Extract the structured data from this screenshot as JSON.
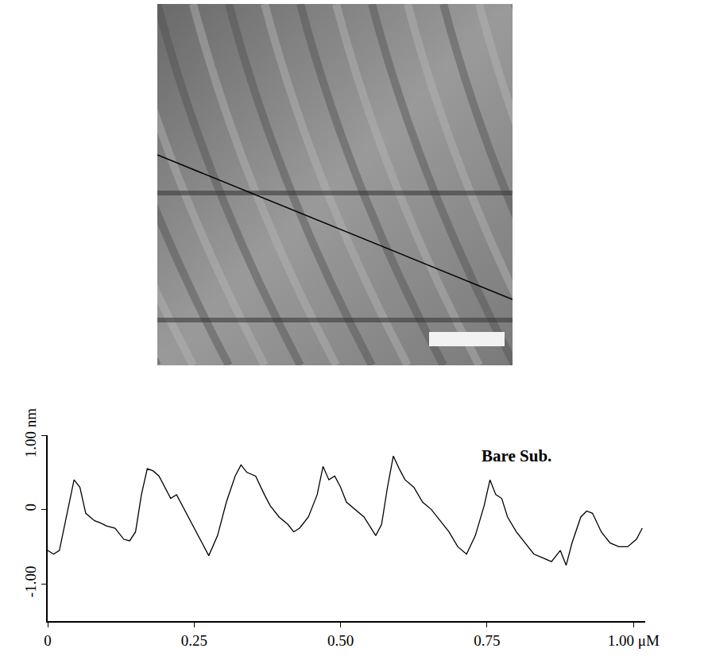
{
  "chart_data": {
    "type": "line",
    "color": "#000000",
    "grid": false,
    "annotations": [
      {
        "text": "Bare Sub.",
        "x": 0.8,
        "y": 0.72
      }
    ],
    "xlim": [
      0,
      1.02
    ],
    "ylim": [
      -1.5,
      1.0
    ],
    "xticks": [
      0,
      {
        "value": 0.25,
        "label": "0.25"
      },
      {
        "value": 0.5,
        "label": "0.50"
      },
      {
        "value": 0.75,
        "label": "0.75"
      },
      {
        "value": 1.0,
        "label": "1.00 μM"
      }
    ],
    "yticks": [
      {
        "value": -1,
        "label": "-1.00"
      },
      0,
      {
        "value": 1,
        "label": "1.00 nm"
      }
    ],
    "x": [
      0.0,
      0.01,
      0.02,
      0.035,
      0.045,
      0.055,
      0.065,
      0.08,
      0.09,
      0.1,
      0.115,
      0.13,
      0.14,
      0.15,
      0.16,
      0.17,
      0.18,
      0.19,
      0.2,
      0.21,
      0.22,
      0.23,
      0.24,
      0.25,
      0.26,
      0.275,
      0.29,
      0.305,
      0.32,
      0.33,
      0.34,
      0.355,
      0.37,
      0.38,
      0.395,
      0.41,
      0.42,
      0.43,
      0.445,
      0.46,
      0.47,
      0.48,
      0.49,
      0.5,
      0.51,
      0.525,
      0.54,
      0.56,
      0.57,
      0.58,
      0.59,
      0.6,
      0.61,
      0.625,
      0.64,
      0.655,
      0.67,
      0.685,
      0.7,
      0.715,
      0.73,
      0.745,
      0.755,
      0.765,
      0.775,
      0.785,
      0.8,
      0.815,
      0.83,
      0.845,
      0.86,
      0.875,
      0.885,
      0.895,
      0.91,
      0.92,
      0.93,
      0.945,
      0.96,
      0.975,
      0.99,
      1.005,
      1.015
    ],
    "values": [
      -0.55,
      -0.6,
      -0.55,
      0.0,
      0.4,
      0.3,
      -0.05,
      -0.15,
      -0.18,
      -0.22,
      -0.25,
      -0.4,
      -0.42,
      -0.3,
      0.2,
      0.55,
      0.52,
      0.45,
      0.3,
      0.15,
      0.2,
      0.05,
      -0.1,
      -0.25,
      -0.4,
      -0.62,
      -0.35,
      0.1,
      0.45,
      0.6,
      0.5,
      0.45,
      0.2,
      0.05,
      -0.1,
      -0.2,
      -0.3,
      -0.25,
      -0.1,
      0.2,
      0.58,
      0.4,
      0.45,
      0.3,
      0.1,
      0.0,
      -0.1,
      -0.35,
      -0.2,
      0.3,
      0.72,
      0.55,
      0.4,
      0.3,
      0.1,
      0.0,
      -0.15,
      -0.3,
      -0.5,
      -0.6,
      -0.35,
      0.05,
      0.4,
      0.2,
      0.15,
      -0.1,
      -0.3,
      -0.45,
      -0.6,
      -0.65,
      -0.7,
      -0.55,
      -0.75,
      -0.45,
      -0.1,
      -0.02,
      -0.05,
      -0.3,
      -0.45,
      -0.5,
      -0.5,
      -0.4,
      -0.25
    ]
  }
}
